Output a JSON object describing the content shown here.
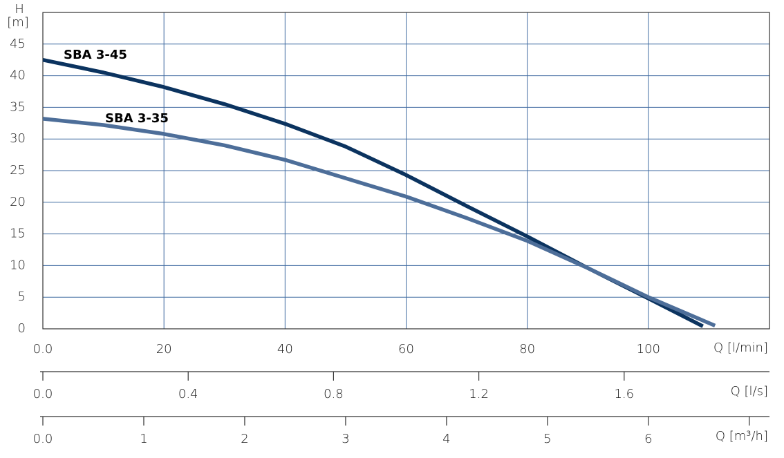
{
  "chart_data": {
    "type": "line",
    "y_label": "H",
    "y_unit": "[m]",
    "ylim": [
      0,
      50
    ],
    "yticks": [
      0,
      5,
      10,
      15,
      20,
      25,
      30,
      35,
      40,
      45
    ],
    "xlabel": "Q [l/min]",
    "xlim": [
      0,
      120
    ],
    "xticks": [
      {
        "value": 0,
        "label": "0.0"
      },
      20,
      40,
      60,
      80,
      100
    ],
    "grid": true,
    "extra_x_axes": [
      {
        "label": "Q [l/s]",
        "xlim": [
          0,
          2
        ],
        "xticks": [
          {
            "value": 0,
            "label": "0.0"
          },
          0.4,
          0.8,
          1.2,
          1.6
        ]
      },
      {
        "label": "Q [m³/h]",
        "xlim": [
          0,
          7.2
        ],
        "xticks": [
          {
            "value": 0,
            "label": "0.0"
          },
          1,
          2,
          3,
          4,
          5,
          6,
          {
            "value": 7,
            "label": null
          }
        ]
      }
    ],
    "series": [
      {
        "name": "SBA 3-45",
        "color": "#0b335f",
        "x": [
          0,
          10,
          20,
          30,
          40,
          50,
          60,
          70,
          80,
          90,
          100,
          109
        ],
        "values": [
          42.5,
          40.5,
          38.2,
          35.5,
          32.4,
          28.8,
          24.3,
          19.4,
          14.6,
          9.6,
          4.8,
          0.4
        ]
      },
      {
        "name": "SBA 3-35",
        "color": "#4d6e99",
        "x": [
          0,
          10,
          20,
          30,
          40,
          50,
          60,
          70,
          80,
          90,
          100,
          111
        ],
        "values": [
          33.2,
          32.2,
          30.8,
          29,
          26.7,
          23.8,
          20.9,
          17.5,
          13.9,
          9.6,
          5,
          0.5
        ]
      }
    ]
  }
}
